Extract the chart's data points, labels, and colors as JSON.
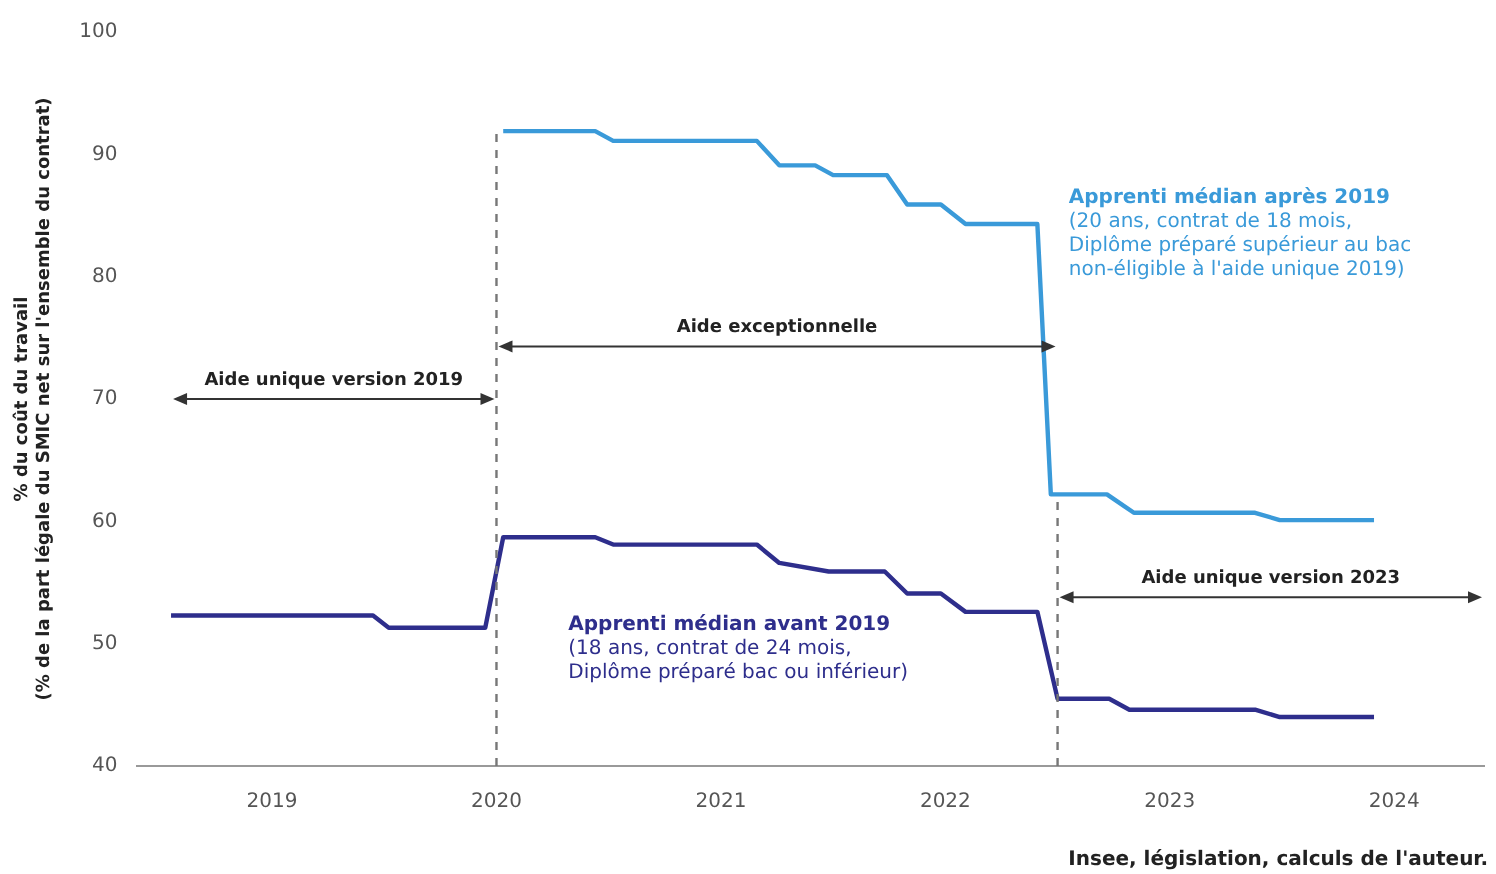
{
  "chart_data": {
    "type": "line",
    "ylabel": "% du coût du travail\n(% de la part légale du SMIC net sur l'ensemble du contrat)",
    "xlim": [
      2018.4,
      2024.4
    ],
    "xticks": [
      2019,
      2020,
      2021,
      2022,
      2023,
      2024
    ],
    "ylim": [
      40,
      100
    ],
    "yticks": [
      40,
      50,
      60,
      70,
      80,
      90,
      100
    ],
    "grid": false,
    "legend": false,
    "marker": "none",
    "line_style": "solid",
    "series": [
      {
        "name": "Apprenti médian après 2019",
        "color": "#3a9ad9",
        "x": [
          2020.03,
          2020.44,
          2020.52,
          2021.16,
          2021.26,
          2021.42,
          2021.5,
          2021.74,
          2021.83,
          2021.98,
          2022.09,
          2022.41,
          2022.47,
          2022.72,
          2022.84,
          2023.38,
          2023.49,
          2023.91
        ],
        "values": [
          91.9,
          91.9,
          91.1,
          91.1,
          89.1,
          89.1,
          88.3,
          88.3,
          85.9,
          85.9,
          84.3,
          84.3,
          62.2,
          62.2,
          60.7,
          60.7,
          60.1,
          60.1
        ]
      },
      {
        "name": "Apprenti médian avant 2019",
        "color": "#2e2e8c",
        "x": [
          2018.55,
          2019.45,
          2019.52,
          2019.95,
          2020.03,
          2020.44,
          2020.52,
          2021.16,
          2021.26,
          2021.48,
          2021.73,
          2021.83,
          2021.98,
          2022.09,
          2022.41,
          2022.5,
          2022.73,
          2022.82,
          2023.38,
          2023.49,
          2023.91
        ],
        "values": [
          52.3,
          52.3,
          51.3,
          51.3,
          58.7,
          58.7,
          58.1,
          58.1,
          56.6,
          55.9,
          55.9,
          54.1,
          54.1,
          52.6,
          52.6,
          45.5,
          45.5,
          44.6,
          44.6,
          44.0,
          44.0
        ]
      }
    ],
    "ref_lines": [
      {
        "axis": "x",
        "value": 2020,
        "color": "#777777",
        "line_style": "dashed"
      },
      {
        "axis": "x",
        "value": 2022.5,
        "color": "#777777",
        "line_style": "dashed"
      }
    ],
    "annotations": [
      "Aide unique version 2019",
      "Aide exceptionnelle",
      "Aide unique version 2023",
      "(20 ans, contrat de 18 mois,\nDiplôme préparé supérieur au bac\nnon-éligible à l'aide unique 2019)",
      "(18 ans, contrat de 24 mois,\nDiplôme préparé bac ou inférieur)",
      "Insee, législation, calculs de l'auteur."
    ]
  }
}
